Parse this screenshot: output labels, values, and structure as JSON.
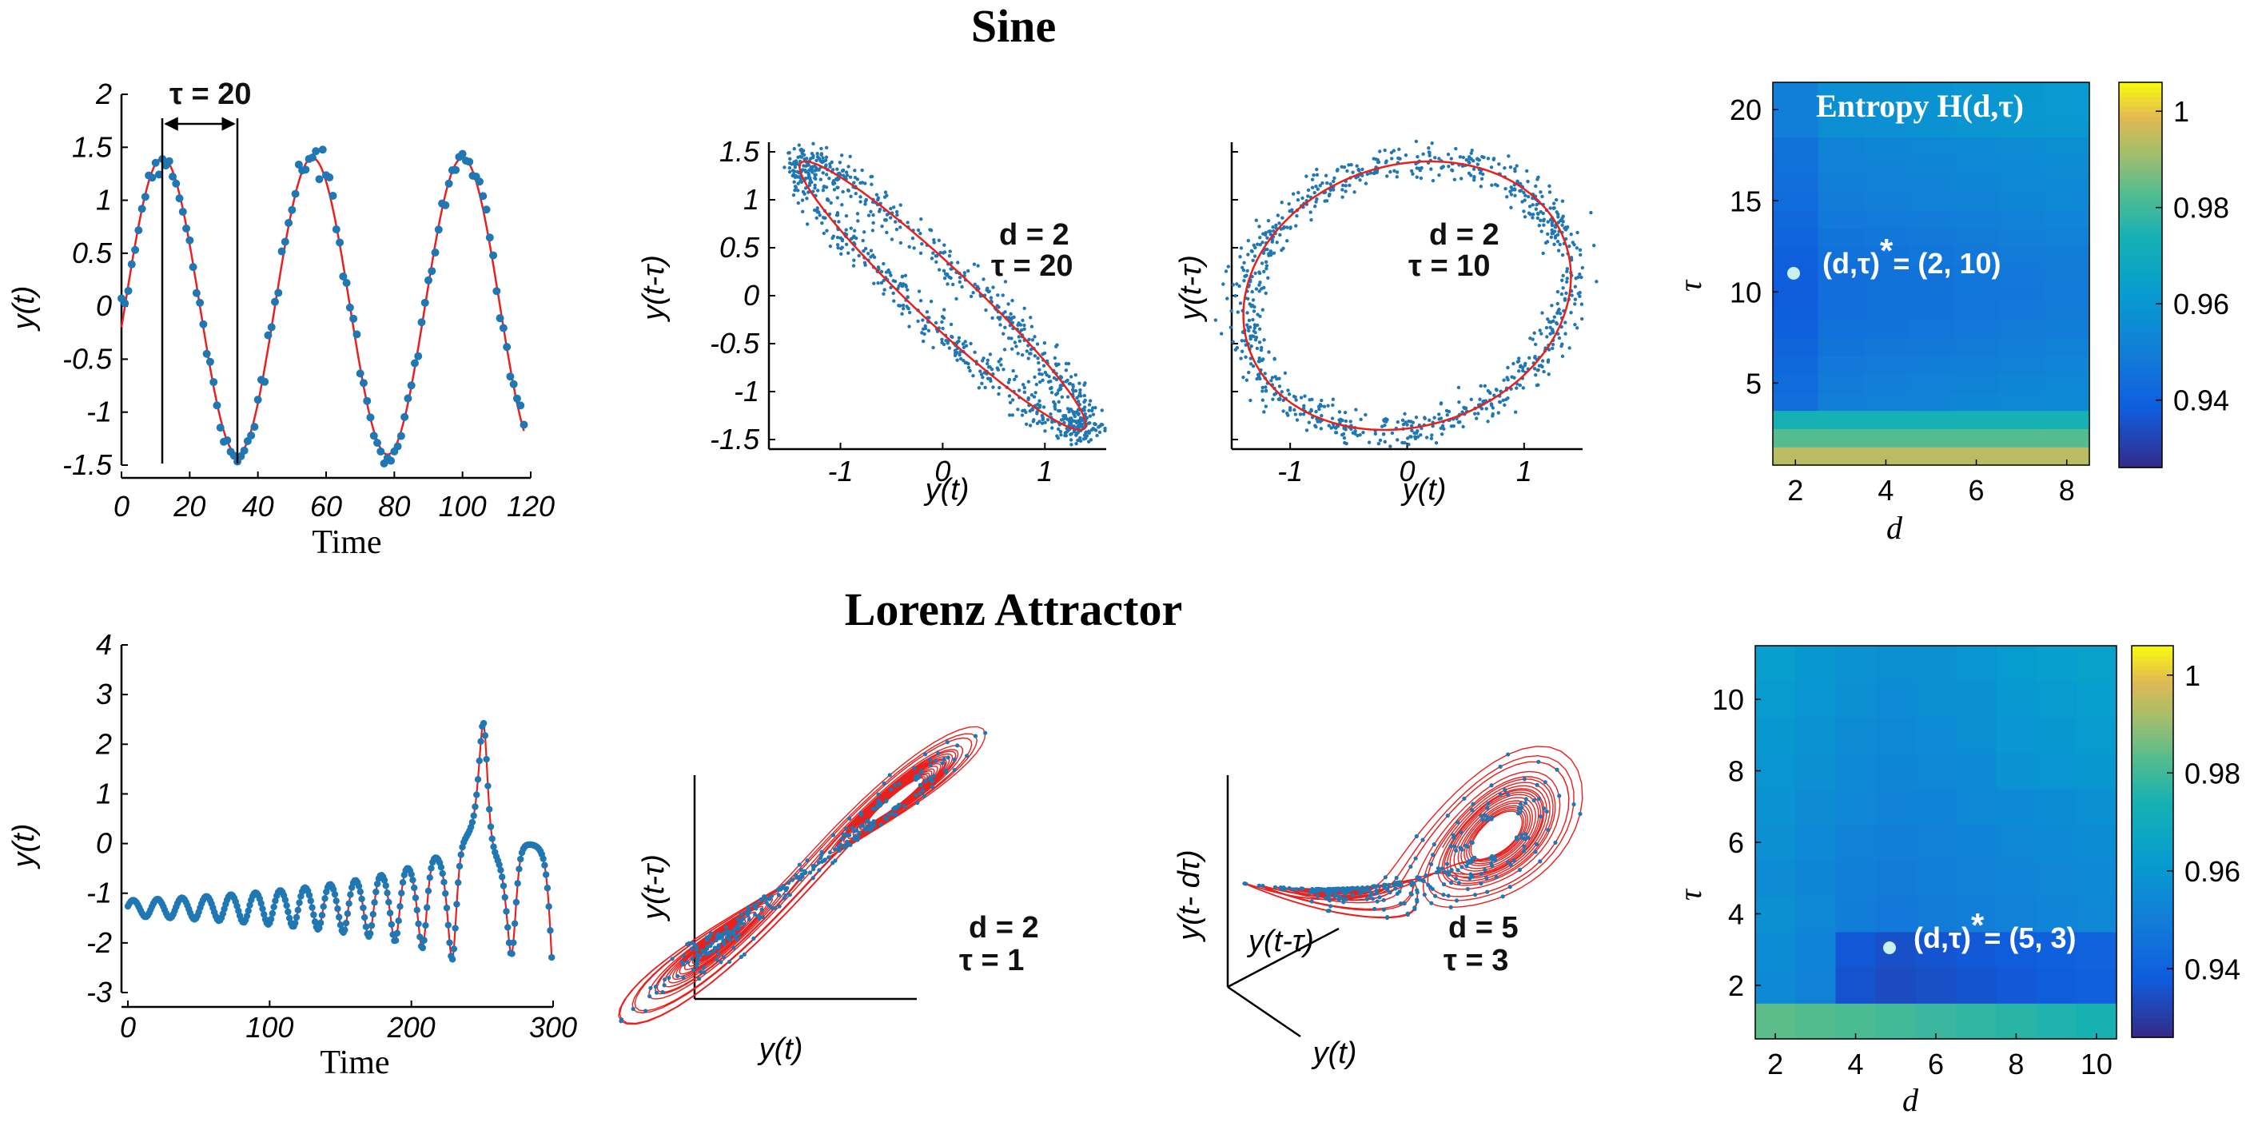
{
  "titles": {
    "top": "Sine",
    "bottom": "Lorenz Attractor"
  },
  "colors": {
    "data": "#1f77b4",
    "fit": "#e8201e"
  },
  "chart_data": [
    {
      "id": "sine_ts",
      "type": "line",
      "xlabel": "Time",
      "ylabel": "y(t)",
      "xlim": [
        0,
        120
      ],
      "ylim": [
        -1.5,
        2
      ],
      "xticks": [
        "0",
        "20",
        "40",
        "60",
        "80",
        "100",
        "120"
      ],
      "yticks": [
        "-1.5",
        "-1",
        "-0.5",
        "0",
        "0.5",
        "1",
        "1.5",
        "2"
      ],
      "series": [
        {
          "kind": "line",
          "model": "1.4*sin(2*pi*(t-1)/44)"
        },
        {
          "kind": "scatter",
          "values": "noisy samples of the sine, t = 0…118 step 1"
        }
      ],
      "annotation": {
        "label": "τ = 20",
        "from": 11,
        "to": 33
      }
    },
    {
      "id": "sine_embed_d2_t20",
      "type": "scatter",
      "xlabel": "y(t)",
      "ylabel": "y(t-τ)",
      "xlim": [
        -1.7,
        1.6
      ],
      "ylim": [
        -1.6,
        1.6
      ],
      "xticks": [
        "-1",
        "0",
        "1"
      ],
      "yticks": [
        "1.5",
        "1",
        "0.5",
        "0",
        "-0.5",
        "-1",
        "-1.5"
      ],
      "annotation": [
        "d = 2",
        "τ = 20"
      ]
    },
    {
      "id": "sine_embed_d2_t10",
      "type": "scatter",
      "xlabel": "y(t)",
      "ylabel": "y(t-τ)",
      "xlim": [
        -1.5,
        1.5
      ],
      "ylim": [
        -1.6,
        1.6
      ],
      "xticks": [
        "-1",
        "0",
        "1"
      ],
      "annotation": [
        "d = 2",
        "τ = 10"
      ]
    },
    {
      "id": "sine_entropy",
      "type": "heatmap",
      "title": "Entropy H(d,τ)",
      "xlabel": "d",
      "ylabel": "τ",
      "x": [
        2,
        3,
        4,
        5,
        6,
        7,
        8
      ],
      "y": [
        1,
        2,
        3,
        4,
        5,
        6,
        7,
        8,
        9,
        10,
        11,
        12,
        13,
        14,
        15,
        16,
        17,
        18,
        19,
        20,
        21
      ],
      "xticks": [
        "2",
        "4",
        "6",
        "8"
      ],
      "yticks": [
        "5",
        "10",
        "15",
        "20"
      ],
      "zlim": [
        0.926,
        1.006
      ],
      "colorbar_ticks": [
        "1",
        "0.98",
        "0.96",
        "0.94"
      ],
      "optimum": {
        "label": "(d,τ)",
        "star": "*",
        "value": "= (2, 10)",
        "d": 2,
        "tau": 10
      }
    },
    {
      "id": "lorenz_ts",
      "type": "line",
      "xlabel": "Time",
      "ylabel": "y(t)",
      "xlim": [
        0,
        300
      ],
      "ylim": [
        -3,
        4
      ],
      "xticks": [
        "0",
        "100",
        "200",
        "300"
      ],
      "yticks": [
        "-3",
        "-2",
        "-1",
        "0",
        "1",
        "2",
        "3",
        "4"
      ]
    },
    {
      "id": "lorenz_embed_d2",
      "type": "line",
      "xlabel": "y(t)",
      "ylabel": "y(t-τ)",
      "annotation": [
        "d = 2",
        "τ = 1"
      ]
    },
    {
      "id": "lorenz_embed_d5",
      "type": "line",
      "xlabel": "y(t)",
      "ylabel": "y(t- dτ)",
      "zlabel": "y(t-τ)",
      "annotation": [
        "d = 5",
        "τ = 3"
      ]
    },
    {
      "id": "lorenz_entropy",
      "type": "heatmap",
      "xlabel": "d",
      "ylabel": "τ",
      "x": [
        2,
        3,
        4,
        5,
        6,
        7,
        8,
        9,
        10
      ],
      "y": [
        1,
        2,
        3,
        4,
        5,
        6,
        7,
        8,
        9,
        10,
        11
      ],
      "xticks": [
        "2",
        "4",
        "6",
        "8",
        "10"
      ],
      "yticks": [
        "2",
        "4",
        "6",
        "8",
        "10"
      ],
      "zlim": [
        0.926,
        1.006
      ],
      "colorbar_ticks": [
        "1",
        "0.98",
        "0.96",
        "0.94"
      ],
      "optimum": {
        "label": "(d,τ)",
        "star": "*",
        "value": "= (5, 3)",
        "d": 5,
        "tau": 3
      }
    }
  ]
}
